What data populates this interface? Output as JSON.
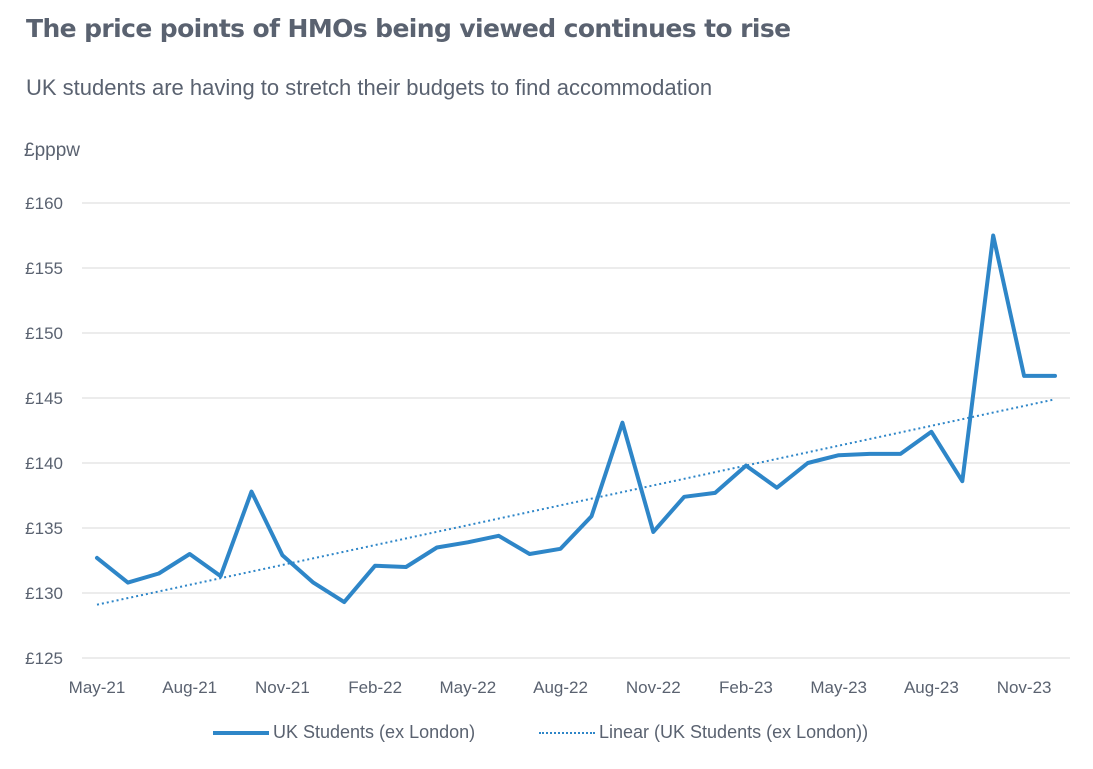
{
  "title": "The price points of HMOs being viewed continues to rise",
  "subtitle": "UK students are having to stretch their budgets to find accommodation",
  "colors": {
    "series": "#2e86c8",
    "grid": "#d9d9d9",
    "text": "#5a6270"
  },
  "chart_data": {
    "type": "line",
    "title": "The price points of HMOs being viewed continues to rise",
    "subtitle": "UK students are having to stretch their budgets to find accommodation",
    "ylabel": "£pppw",
    "xlabel": "",
    "ylim": [
      125,
      160
    ],
    "y_ticks": [
      125,
      130,
      135,
      140,
      145,
      150,
      155,
      160
    ],
    "y_tick_labels": [
      "£125",
      "£130",
      "£135",
      "£140",
      "£145",
      "£150",
      "£155",
      "£160"
    ],
    "categories": [
      "May-21",
      "Jun-21",
      "Jul-21",
      "Aug-21",
      "Sep-21",
      "Oct-21",
      "Nov-21",
      "Dec-21",
      "Jan-22",
      "Feb-22",
      "Mar-22",
      "Apr-22",
      "May-22",
      "Jun-22",
      "Jul-22",
      "Aug-22",
      "Sep-22",
      "Oct-22",
      "Nov-22",
      "Dec-22",
      "Jan-23",
      "Feb-23",
      "Mar-23",
      "Apr-23",
      "May-23",
      "Jun-23",
      "Jul-23",
      "Aug-23",
      "Sep-23",
      "Oct-23",
      "Nov-23",
      "Dec-23"
    ],
    "x_tick_labels": [
      "May-21",
      "Aug-21",
      "Nov-21",
      "Feb-22",
      "May-22",
      "Aug-22",
      "Nov-22",
      "Feb-23",
      "May-23",
      "Aug-23",
      "Nov-23"
    ],
    "x_tick_indices": [
      0,
      3,
      6,
      9,
      12,
      15,
      18,
      21,
      24,
      27,
      30
    ],
    "grid": true,
    "legend_position": "bottom",
    "series": [
      {
        "name": "UK Students (ex London)",
        "style": "solid",
        "values": [
          132.7,
          130.8,
          131.5,
          133.0,
          131.3,
          137.8,
          132.9,
          130.8,
          129.3,
          132.1,
          132.0,
          133.5,
          133.9,
          134.4,
          133.0,
          133.4,
          135.9,
          143.1,
          134.7,
          137.4,
          137.7,
          139.8,
          138.1,
          140.0,
          140.6,
          140.7,
          140.7,
          142.4,
          138.6,
          157.5,
          146.7,
          146.7
        ]
      },
      {
        "name": "Linear (UK Students (ex London))",
        "style": "dotted",
        "values_start": 129.1,
        "values_end": 144.9
      }
    ]
  },
  "legend": {
    "series_label": "UK Students (ex London)",
    "trend_label": "Linear (UK Students (ex London))"
  }
}
